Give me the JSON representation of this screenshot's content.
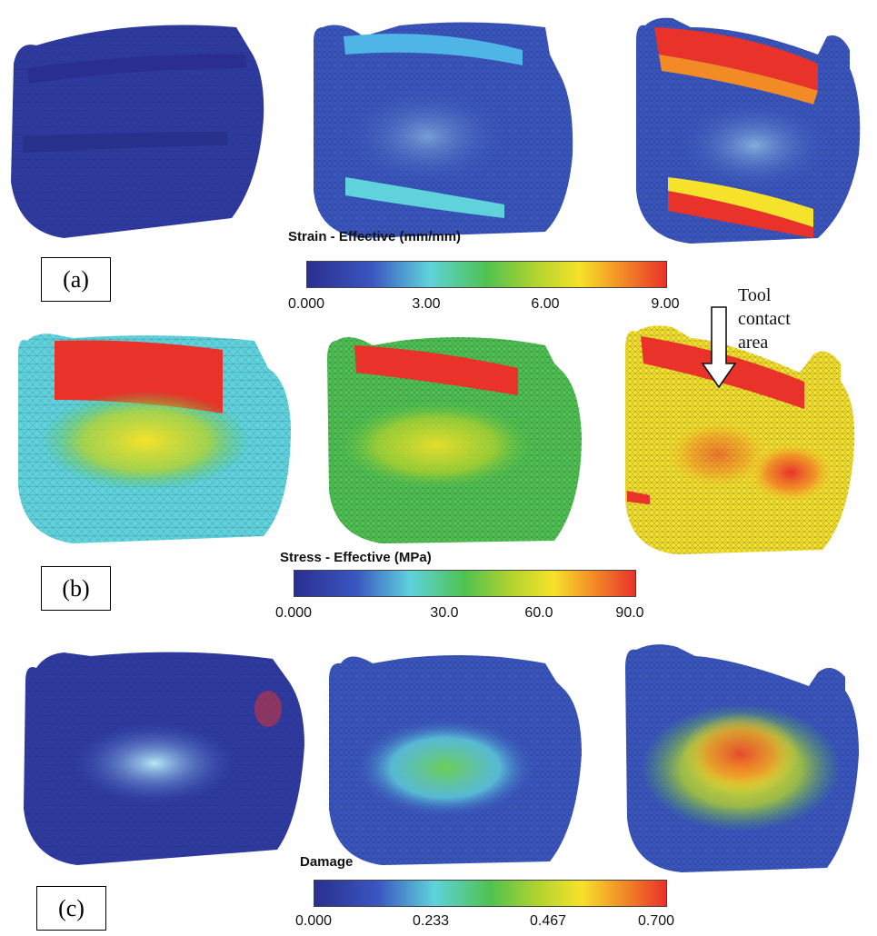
{
  "legends": {
    "strain": {
      "title": "Strain - Effective (mm/mm)",
      "ticks": [
        "0.000",
        "3.00",
        "6.00",
        "9.00"
      ]
    },
    "stress": {
      "title": "Stress - Effective (MPa)",
      "ticks": [
        "0.000",
        "30.0",
        "60.0",
        "90.0"
      ]
    },
    "damage": {
      "title": "Damage",
      "ticks": [
        "0.000",
        "0.233",
        "0.467",
        "0.700"
      ]
    }
  },
  "panels": {
    "a": "(a)",
    "b": "(b)",
    "c": "(c)"
  },
  "annotation": {
    "line1": "Tool",
    "line2": "contact",
    "line3": "area"
  },
  "colors": {
    "jet_stops": [
      "#2a2f8f",
      "#3a56c0",
      "#4fb4e6",
      "#5fd2dc",
      "#4fc24f",
      "#b4d42e",
      "#f6e22a",
      "#f28a26",
      "#e8322a"
    ],
    "mesh_line": "#1c2440"
  }
}
